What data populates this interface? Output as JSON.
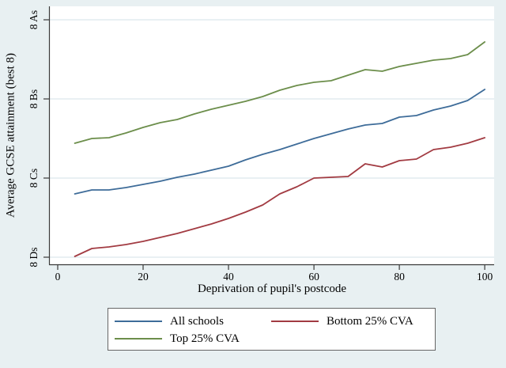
{
  "figure": {
    "background_color": "#e8f0f2",
    "plot_background_color": "#ffffff",
    "grid_color": "#e2ecef",
    "axis_color": "#3a3a3a",
    "legend_border_color": "#666666"
  },
  "chart_data": {
    "type": "line",
    "title": "",
    "xlabel": "Deprivation of pupil's postcode",
    "ylabel": "Average GCSE attainment (best 8)",
    "xlim": [
      -1.85,
      102.2
    ],
    "ylim": [
      -0.09,
      3.17
    ],
    "grid": true,
    "legend_position": "bottom",
    "xticks": [
      0,
      20,
      40,
      60,
      80,
      100
    ],
    "yticks": [
      {
        "value": 0,
        "label": "8 Ds"
      },
      {
        "value": 1,
        "label": "8 Cs"
      },
      {
        "value": 2,
        "label": "8 Bs"
      },
      {
        "value": 3,
        "label": "8 As"
      }
    ],
    "y_unit_note": "0 = 8 Ds, 1 = 8 Cs, 2 = 8 Bs, 3 = 8 As",
    "x": [
      4,
      8,
      12,
      16,
      20,
      24,
      28,
      32,
      36,
      40,
      44,
      48,
      52,
      56,
      60,
      64,
      68,
      72,
      76,
      80,
      84,
      88,
      92,
      96,
      100
    ],
    "series": [
      {
        "name": "All schools",
        "color": "#3e6c99",
        "values": [
          0.8,
          0.85,
          0.85,
          0.88,
          0.92,
          0.96,
          1.01,
          1.05,
          1.1,
          1.15,
          1.23,
          1.3,
          1.36,
          1.43,
          1.5,
          1.56,
          1.62,
          1.67,
          1.69,
          1.77,
          1.79,
          1.86,
          1.91,
          1.98,
          2.12
        ]
      },
      {
        "name": "Bottom 25% CVA",
        "color": "#a23b42",
        "values": [
          0.01,
          0.11,
          0.13,
          0.16,
          0.2,
          0.25,
          0.3,
          0.36,
          0.42,
          0.49,
          0.57,
          0.66,
          0.8,
          0.89,
          1.0,
          1.01,
          1.02,
          1.18,
          1.14,
          1.22,
          1.24,
          1.36,
          1.39,
          1.44,
          1.51
        ]
      },
      {
        "name": "Top 25% CVA",
        "color": "#6c8e4b",
        "values": [
          1.44,
          1.5,
          1.51,
          1.57,
          1.64,
          1.7,
          1.74,
          1.81,
          1.87,
          1.92,
          1.97,
          2.03,
          2.11,
          2.17,
          2.21,
          2.23,
          2.3,
          2.37,
          2.35,
          2.41,
          2.45,
          2.49,
          2.51,
          2.56,
          2.72
        ]
      }
    ]
  }
}
